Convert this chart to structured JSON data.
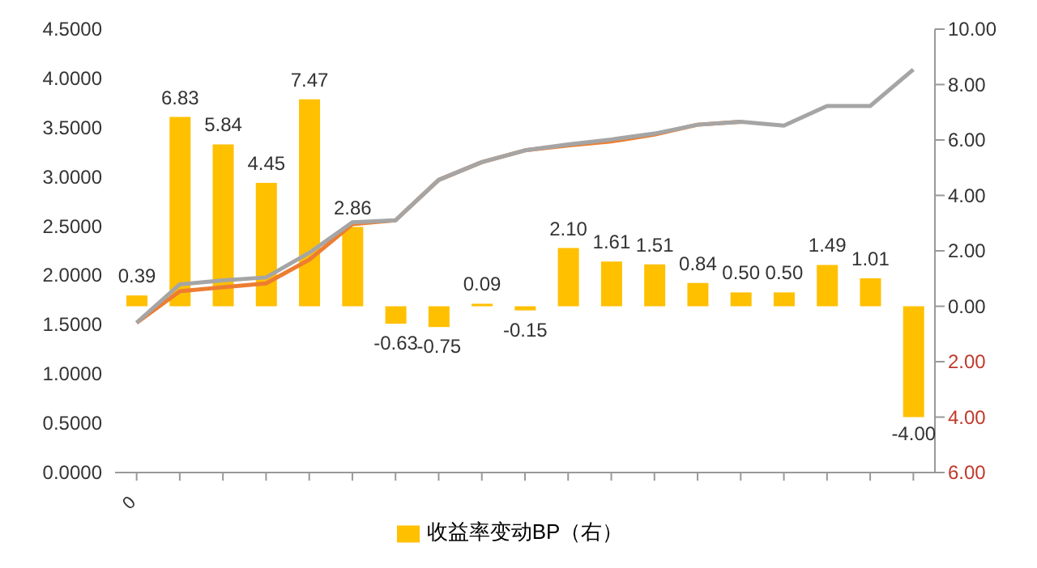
{
  "chart_data": {
    "type": "line",
    "categories": [
      "0",
      null,
      null,
      null,
      null,
      null,
      null,
      null,
      null,
      null,
      null,
      null,
      null,
      null,
      null,
      null,
      null,
      null,
      null
    ],
    "series": [
      {
        "color": "#ed7d31",
        "values": [
          1.52,
          1.84,
          1.88,
          1.92,
          2.16,
          2.52,
          2.56,
          2.97,
          3.15,
          3.27,
          3.32,
          3.36,
          3.43,
          3.53,
          3.56,
          null,
          null,
          null,
          null
        ]
      },
      {
        "color": "#a5a5a5",
        "values": [
          1.52,
          1.91,
          1.95,
          1.98,
          2.23,
          2.54,
          2.56,
          2.97,
          3.15,
          3.27,
          3.33,
          3.38,
          3.44,
          3.53,
          3.56,
          3.52,
          3.72,
          3.72,
          4.09
        ]
      },
      {
        "type": "bar",
        "axis": "y2",
        "name": "收益率变动BP（右）",
        "color": "#ffc000",
        "values": [
          0.39,
          6.83,
          5.84,
          4.45,
          7.47,
          2.86,
          -0.63,
          -0.75,
          0.09,
          -0.15,
          2.1,
          1.61,
          1.51,
          0.84,
          0.5,
          0.5,
          1.49,
          1.01,
          -4.0
        ],
        "value_labels": [
          "0.39",
          "6.83",
          "5.84",
          "4.45",
          "7.47",
          "2.86",
          "-0.63",
          "-0.75",
          "0.09",
          "-0.15",
          "2.10",
          "1.61",
          "1.51",
          "0.84",
          "0.50",
          "0.50",
          "1.49",
          "1.01",
          "-4.00"
        ]
      }
    ],
    "ylim": [
      0,
      4.5
    ],
    "yticks": [
      {
        "value": 0,
        "label": "0.0000"
      },
      {
        "value": 0.5,
        "label": "0.5000"
      },
      {
        "value": 1,
        "label": "1.0000"
      },
      {
        "value": 1.5,
        "label": "1.5000"
      },
      {
        "value": 2,
        "label": "2.0000"
      },
      {
        "value": 2.5,
        "label": "2.5000"
      },
      {
        "value": 3,
        "label": "3.0000"
      },
      {
        "value": 3.5,
        "label": "3.5000"
      },
      {
        "value": 4,
        "label": "4.0000"
      },
      {
        "value": 4.5,
        "label": "4.5000"
      }
    ],
    "y2lim": [
      -6,
      10
    ],
    "y2ticks": [
      {
        "value": -6,
        "label": "6.00"
      },
      {
        "value": -4,
        "label": "4.00"
      },
      {
        "value": -2,
        "label": "2.00"
      },
      {
        "value": 0,
        "label": "0.00"
      },
      {
        "value": 2,
        "label": "2.00"
      },
      {
        "value": 4,
        "label": "4.00"
      },
      {
        "value": 6,
        "label": "6.00"
      },
      {
        "value": 8,
        "label": "8.00"
      },
      {
        "value": 10,
        "label": "10.00"
      }
    ],
    "grid": false,
    "legend": "bottom",
    "marker": "none",
    "line_style": "solid"
  }
}
